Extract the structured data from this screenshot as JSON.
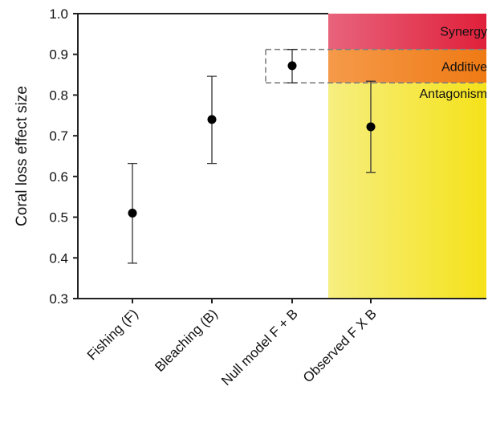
{
  "chart_data": {
    "type": "scatter",
    "title": "",
    "xlabel": "",
    "ylabel": "Coral loss effect size",
    "ylim": [
      0.3,
      1.0
    ],
    "yticks": [
      "0.3",
      "0.4",
      "0.5",
      "0.6",
      "0.7",
      "0.8",
      "0.9",
      "1.0"
    ],
    "grid": false,
    "categories": [
      "Fishing (F)",
      "Bleaching (B)",
      "Null model F + B",
      "Observed F X B"
    ],
    "points": [
      {
        "category": "Fishing (F)",
        "mean": 0.51,
        "lower": 0.387,
        "upper": 0.632
      },
      {
        "category": "Bleaching (B)",
        "mean": 0.74,
        "lower": 0.632,
        "upper": 0.846
      },
      {
        "category": "Null model F + B",
        "mean": 0.872,
        "lower": 0.83,
        "upper": 0.912
      },
      {
        "category": "Observed F X B",
        "mean": 0.722,
        "lower": 0.61,
        "upper": 0.834
      }
    ],
    "zones": [
      {
        "label": "Synergy",
        "from": 0.912,
        "to": 1.0,
        "color_left": "#e8637c",
        "color_right": "#e0203a"
      },
      {
        "label": "Additive",
        "from": 0.83,
        "to": 0.912,
        "color_left": "#f59a4a",
        "color_right": "#ef7a14"
      },
      {
        "label": "Antagonism",
        "from": 0.3,
        "to": 0.83,
        "color_left": "#f6ee80",
        "color_right": "#f5e21a"
      }
    ],
    "additive_band": [
      0.83,
      0.912
    ]
  }
}
